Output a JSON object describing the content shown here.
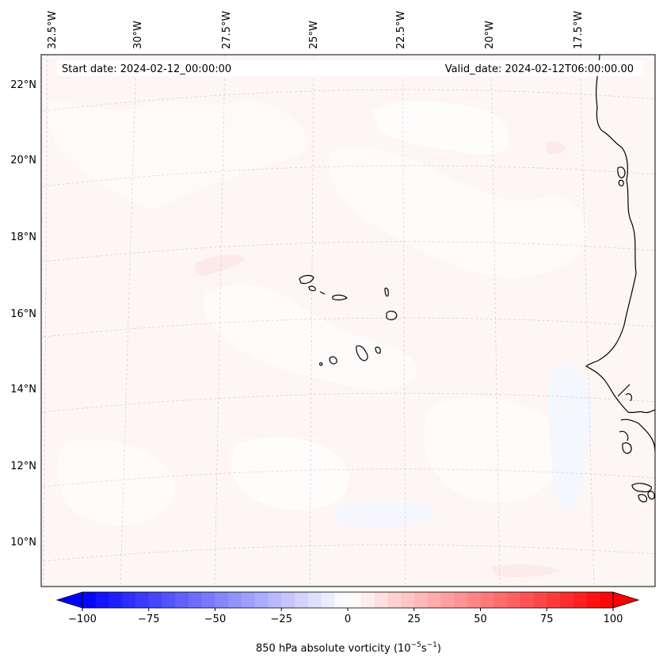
{
  "map": {
    "start_date_text": "Start date: 2024-02-12_00:00:00",
    "valid_date_text": "Valid_date: 2024-02-12T06:00:00.00",
    "lon_labels": [
      "32.5°W",
      "30°W",
      "27.5°W",
      "25°W",
      "22.5°W",
      "20°W",
      "17.5°W"
    ],
    "lat_labels": [
      "22°N",
      "20°N",
      "18°N",
      "16°N",
      "14°N",
      "12°N",
      "10°N"
    ],
    "background_color": "#fef5f5",
    "field_colors": {
      "light_red": "#fde8e8",
      "lighter": "#fefafa",
      "near_white": "#fffdfd",
      "light_blue": "#f4f6fe"
    }
  },
  "colorbar": {
    "label_prefix": "850 hPa absolute vorticity (10",
    "label_exp1": "−5",
    "label_mid": "s",
    "label_exp2": "−1",
    "label_suffix": ")",
    "tick_labels": [
      "−100",
      "−75",
      "−50",
      "−25",
      "0",
      "25",
      "50",
      "75",
      "100"
    ],
    "min": -100,
    "max": 100,
    "step": 5,
    "cmap": "bwr"
  }
}
